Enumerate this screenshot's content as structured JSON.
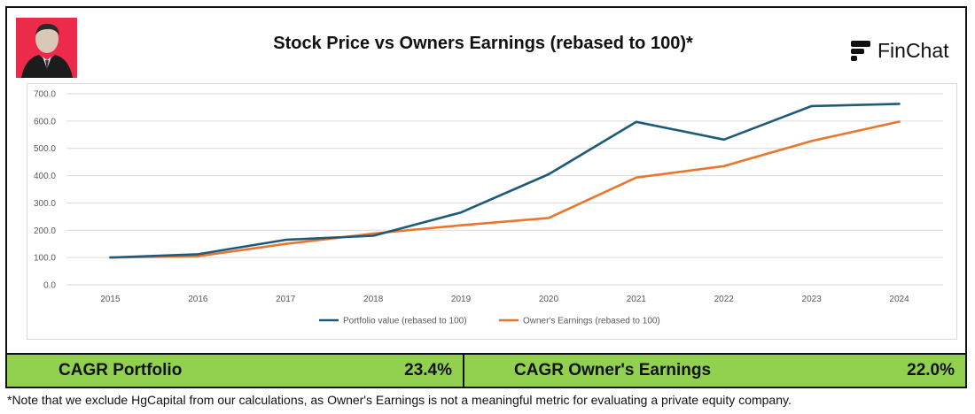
{
  "header": {
    "title": "Stock Price vs Owners Earnings (rebased to 100)*",
    "logo_text": "FinChat"
  },
  "kpis": [
    {
      "label": "CAGR Portfolio",
      "value": "23.4%"
    },
    {
      "label": "CAGR Owner's Earnings",
      "value": "22.0%"
    }
  ],
  "footnote": "*Note that we exclude HgCapital from our calculations, as Owner's Earnings is not a meaningful metric for evaluating a private equity company.",
  "colors": {
    "portfolio": "#1f5a7a",
    "earnings": "#e8772e",
    "kpi_bg": "#92d050",
    "avatar_bg": "#ee2a4a"
  },
  "chart_data": {
    "type": "line",
    "x": [
      "2015",
      "2016",
      "2017",
      "2018",
      "2019",
      "2020",
      "2021",
      "2022",
      "2023",
      "2024"
    ],
    "series": [
      {
        "name": "Portfolio value (rebased to 100)",
        "values": [
          100,
          112,
          165,
          180,
          265,
          405,
          597,
          532,
          655,
          663
        ]
      },
      {
        "name": "Owner's Earnings (rebased to 100)",
        "values": [
          100,
          105,
          150,
          188,
          218,
          245,
          393,
          435,
          527,
          598
        ]
      }
    ],
    "y_ticks": [
      "0.0",
      "100.0",
      "200.0",
      "300.0",
      "400.0",
      "500.0",
      "600.0",
      "700.0"
    ],
    "ylim": [
      0,
      700
    ],
    "grid": true,
    "legend": "bottom"
  }
}
